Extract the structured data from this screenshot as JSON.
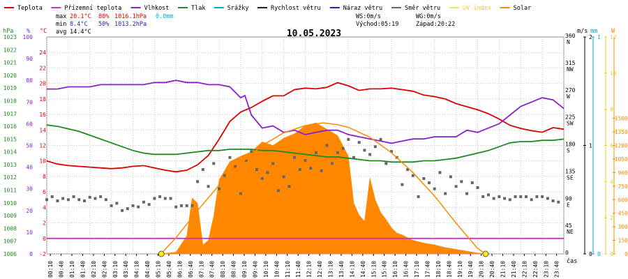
{
  "legend": [
    {
      "label": "Teplota",
      "color": "#dd0000"
    },
    {
      "label": "Přízemní teplota",
      "color": "#cc33cc"
    },
    {
      "label": "Vlhkost",
      "color": "#8822cc"
    },
    {
      "label": "Tlak",
      "color": "#228822"
    },
    {
      "label": "Srážky",
      "color": "#00aacc"
    },
    {
      "label": "Rychlost větru",
      "color": "#222222"
    },
    {
      "label": "Náraz větru",
      "color": "#2222aa"
    },
    {
      "label": "Směr větru",
      "color": "#666666"
    },
    {
      "label": "UV index",
      "color": "#f4e36a"
    },
    {
      "label": "Solar",
      "color": "#ff8800"
    }
  ],
  "stats": {
    "max_label": "max",
    "max_temp": "20.1°C",
    "max_hum": "80%",
    "max_press": "1016.1hPa",
    "max_rain": "0.0mm",
    "min_label": "min",
    "min_temp": "8.4°C",
    "min_hum": "50%",
    "min_press": "1013.2hPa",
    "avg_label": "avg",
    "avg_temp": "14.4°C",
    "ws": "WS:0m/s",
    "wg": "WG:0m/s",
    "sunrise": "Východ:05:19",
    "sunset": "Západ:20:22"
  },
  "chart_data": {
    "type": "line",
    "title": "10.05.2023",
    "xlabel": "čas",
    "x_ticks": [
      "00:10",
      "00:40",
      "01:10",
      "01:40",
      "02:10",
      "02:40",
      "03:10",
      "03:40",
      "04:10",
      "04:40",
      "05:10",
      "05:40",
      "06:10",
      "06:40",
      "07:10",
      "07:40",
      "08:10",
      "08:40",
      "09:10",
      "09:40",
      "10:10",
      "10:40",
      "11:10",
      "11:40",
      "12:10",
      "12:40",
      "13:10",
      "13:40",
      "14:10",
      "14:40",
      "15:10",
      "15:40",
      "16:10",
      "16:40",
      "17:10",
      "17:40",
      "18:10",
      "18:40",
      "19:10",
      "19:40",
      "20:10",
      "20:40",
      "21:10",
      "21:40",
      "22:10",
      "22:40",
      "23:10",
      "23:40"
    ],
    "x_range": [
      0,
      24
    ],
    "grid": true,
    "axes": {
      "pressure": {
        "unit": "hPa",
        "range": [
          1006,
          1023
        ],
        "ticks": [
          1006,
          1007,
          1008,
          1009,
          1010,
          1011,
          1012,
          1013,
          1014,
          1015,
          1016,
          1017,
          1018,
          1019,
          1020,
          1021,
          1022,
          1023
        ]
      },
      "humidity": {
        "unit": "%",
        "range": [
          0,
          100
        ],
        "ticks": [
          0,
          10,
          20,
          30,
          40,
          50,
          60,
          70,
          80,
          90,
          100
        ]
      },
      "temperature": {
        "unit": "°C",
        "range": [
          -2,
          26
        ],
        "ticks": [
          -2,
          0,
          2,
          4,
          6,
          8,
          10,
          12,
          14,
          16,
          18,
          20,
          22,
          24
        ]
      },
      "wind_direction": {
        "range": [
          0,
          360
        ],
        "ticks": [
          {
            "value": 360,
            "label": "360",
            "dir": "N"
          },
          {
            "value": 315,
            "label": "315",
            "dir": "NW"
          },
          {
            "value": 270,
            "label": "270",
            "dir": "W"
          },
          {
            "value": 225,
            "label": "225",
            "dir": "SW"
          },
          {
            "value": 180,
            "label": "180",
            "dir": "S"
          },
          {
            "value": 135,
            "label": "135",
            "dir": "SE"
          },
          {
            "value": 90,
            "label": "90",
            "dir": "E"
          },
          {
            "value": 45,
            "label": "45",
            "dir": "NE"
          },
          {
            "value": 0,
            "label": "0",
            "dir": ""
          }
        ]
      },
      "wind_speed": {
        "unit": "m/s",
        "range": [
          0,
          2
        ],
        "ticks": [
          0,
          1,
          2
        ]
      },
      "rain": {
        "unit": "mm",
        "range": [
          0,
          1
        ],
        "ticks": [
          0,
          1
        ]
      },
      "uv": {
        "unit": "",
        "range": [
          0,
          12
        ],
        "ticks": [
          0,
          2,
          4,
          6,
          8,
          10,
          12
        ]
      },
      "solar": {
        "unit": "W",
        "range": [
          0,
          2400
        ],
        "ticks": [
          0,
          150,
          300,
          450,
          600,
          750,
          900,
          1050,
          1200,
          1350,
          1500
        ]
      }
    },
    "series": [
      {
        "name": "Teplota",
        "axis": "temperature",
        "color": "#dd0000",
        "x": [
          0,
          0.5,
          1,
          1.5,
          2,
          2.5,
          3,
          3.5,
          4,
          4.5,
          5,
          5.5,
          6,
          6.5,
          7,
          7.5,
          8,
          8.5,
          9,
          9.5,
          10,
          10.5,
          11,
          11.5,
          12,
          12.5,
          13,
          13.5,
          14,
          14.5,
          15,
          15.5,
          16,
          16.5,
          17,
          17.5,
          18,
          18.5,
          19,
          19.5,
          20,
          20.5,
          21,
          21.5,
          22,
          22.5,
          23,
          23.5,
          24
        ],
        "values": [
          10.0,
          9.6,
          9.4,
          9.3,
          9.2,
          9.1,
          9.0,
          9.1,
          9.3,
          9.4,
          9.1,
          8.8,
          8.6,
          8.8,
          9.5,
          10.7,
          12.8,
          15.1,
          16.3,
          16.9,
          17.7,
          18.4,
          18.4,
          19.2,
          19.4,
          19.3,
          19.5,
          20.1,
          19.7,
          19.1,
          19.3,
          19.3,
          19.4,
          19.2,
          19.0,
          18.5,
          18.3,
          18.0,
          17.4,
          17.0,
          16.6,
          16.1,
          15.4,
          14.6,
          14.2,
          13.9,
          13.7,
          14.3,
          14.1
        ]
      },
      {
        "name": "Přízemní teplota",
        "axis": "temperature",
        "color": "#cc33cc",
        "x": [
          0,
          24
        ],
        "values": [
          0,
          0
        ]
      },
      {
        "name": "Vlhkost",
        "axis": "humidity",
        "color": "#8822cc",
        "x": [
          0,
          0.5,
          1,
          1.5,
          2,
          2.5,
          3,
          3.5,
          4,
          4.5,
          5,
          5.5,
          6,
          6.5,
          7,
          7.5,
          8,
          8.5,
          9,
          9.2,
          9.5,
          10,
          10.5,
          11,
          11.5,
          12,
          12.5,
          13,
          13.5,
          14,
          14.5,
          15,
          15.5,
          16,
          16.5,
          17,
          17.5,
          18,
          18.5,
          19,
          19.5,
          20,
          20.5,
          21,
          21.5,
          22,
          22.5,
          23,
          23.5,
          24
        ],
        "values": [
          76,
          76,
          77,
          77,
          77,
          78,
          78,
          78,
          78,
          78,
          79,
          79,
          80,
          79,
          79,
          78,
          78,
          77,
          72,
          73,
          64,
          58,
          59,
          56,
          57,
          55,
          56,
          57,
          57,
          55,
          54,
          53,
          52,
          51,
          52,
          53,
          53,
          54,
          54,
          54,
          57,
          56,
          58,
          60,
          64,
          68,
          70,
          72,
          71,
          67
        ]
      },
      {
        "name": "Tlak",
        "axis": "pressure",
        "color": "#228822",
        "x": [
          0,
          0.5,
          1,
          1.5,
          2,
          2.5,
          3,
          3.5,
          4,
          4.5,
          5,
          5.5,
          6,
          6.5,
          7,
          7.5,
          8,
          8.5,
          9,
          9.5,
          10,
          10.5,
          11,
          11.5,
          12,
          12.5,
          13,
          13.5,
          14,
          14.5,
          15,
          15.5,
          16,
          16.5,
          17,
          17.5,
          18,
          18.5,
          19,
          19.5,
          20,
          20.5,
          21,
          21.5,
          22,
          22.5,
          23,
          23.5,
          24
        ],
        "values": [
          1016.1,
          1016.0,
          1015.8,
          1015.6,
          1015.3,
          1015.0,
          1014.7,
          1014.4,
          1014.1,
          1013.9,
          1013.8,
          1013.8,
          1013.8,
          1013.9,
          1014.0,
          1014.1,
          1014.1,
          1014.2,
          1014.2,
          1014.2,
          1014.1,
          1014.1,
          1014.0,
          1013.9,
          1013.8,
          1013.7,
          1013.6,
          1013.6,
          1013.5,
          1013.4,
          1013.3,
          1013.3,
          1013.2,
          1013.2,
          1013.2,
          1013.3,
          1013.3,
          1013.4,
          1013.5,
          1013.7,
          1013.9,
          1014.1,
          1014.4,
          1014.7,
          1014.8,
          1014.8,
          1014.9,
          1014.9,
          1015.0
        ]
      },
      {
        "name": "Směr větru",
        "axis": "wind_direction",
        "color": "#666666",
        "type": "scatter",
        "x": [
          0,
          0.25,
          0.5,
          0.75,
          1,
          1.25,
          1.5,
          1.75,
          2,
          2.25,
          2.5,
          2.75,
          3,
          3.25,
          3.5,
          3.75,
          4,
          4.25,
          4.5,
          4.75,
          5,
          5.25,
          5.5,
          5.75,
          6,
          6.25,
          6.5,
          6.75,
          7,
          7.25,
          7.5,
          7.75,
          8,
          8.25,
          8.5,
          8.75,
          9,
          9.25,
          9.5,
          9.75,
          10,
          10.25,
          10.5,
          10.75,
          11,
          11.25,
          11.5,
          11.75,
          12,
          12.25,
          12.5,
          12.75,
          13,
          13.25,
          13.5,
          13.75,
          14,
          14.25,
          14.5,
          14.75,
          15,
          15.25,
          15.5,
          15.75,
          16,
          16.25,
          16.5,
          16.75,
          17,
          17.25,
          17.5,
          17.75,
          18,
          18.25,
          18.5,
          18.75,
          19,
          19.25,
          19.5,
          19.75,
          20,
          20.25,
          20.5,
          20.75,
          21,
          21.25,
          21.5,
          21.75,
          22,
          22.25,
          22.5,
          22.75,
          23,
          23.25,
          23.5,
          23.75
        ],
        "values": [
          90,
          95,
          88,
          92,
          90,
          95,
          90,
          88,
          94,
          92,
          95,
          90,
          80,
          84,
          72,
          75,
          80,
          78,
          86,
          82,
          92,
          95,
          92,
          92,
          78,
          80,
          80,
          80,
          120,
          140,
          112,
          150,
          108,
          130,
          160,
          145,
          100,
          155,
          170,
          140,
          125,
          135,
          150,
          105,
          128,
          112,
          160,
          140,
          155,
          142,
          168,
          138,
          180,
          150,
          168,
          175,
          190,
          160,
          185,
          172,
          165,
          178,
          190,
          150,
          170,
          160,
          115,
          140,
          130,
          95,
          125,
          118,
          108,
          135,
          100,
          128,
          112,
          120,
          100,
          118,
          110,
          95,
          98,
          92,
          95,
          92,
          90,
          95,
          95,
          95,
          90,
          95,
          95,
          92,
          88,
          86
        ]
      },
      {
        "name": "Solar",
        "axis": "solar",
        "color": "#ff8800",
        "type": "area",
        "x": [
          5.3,
          6,
          6.5,
          6.75,
          7,
          7.25,
          7.5,
          7.75,
          8,
          8.25,
          8.5,
          9,
          9.5,
          10,
          10.5,
          11,
          11.5,
          12,
          12.5,
          13,
          13.5,
          14,
          14.25,
          14.5,
          14.75,
          15,
          15.25,
          15.5,
          15.75,
          16,
          16.25,
          16.5,
          17,
          17.5,
          18,
          18.5,
          19,
          19.5,
          20,
          20.37
        ],
        "values": [
          0,
          20,
          200,
          620,
          560,
          100,
          150,
          420,
          820,
          920,
          1020,
          1080,
          1130,
          1240,
          1200,
          1280,
          1330,
          1420,
          1450,
          1380,
          1310,
          1080,
          560,
          430,
          360,
          840,
          600,
          460,
          380,
          290,
          230,
          210,
          150,
          120,
          100,
          70,
          50,
          30,
          10,
          0
        ]
      },
      {
        "name": "Solar (teoretický)",
        "axis": "solar",
        "color": "#ff8800",
        "type": "line",
        "x": [
          5.3,
          6,
          7,
          8,
          9,
          10,
          11,
          12,
          12.83,
          13.5,
          14,
          15,
          16,
          17,
          18,
          19,
          20,
          20.37
        ],
        "values": [
          0,
          180,
          480,
          760,
          1000,
          1200,
          1340,
          1420,
          1450,
          1430,
          1400,
          1290,
          1120,
          900,
          640,
          340,
          60,
          0
        ]
      },
      {
        "name": "Sunrise / sunset",
        "axis": "solar",
        "color": "#ffee00",
        "type": "scatter",
        "x": [
          5.32,
          20.37
        ],
        "values": [
          0,
          0
        ]
      }
    ]
  }
}
